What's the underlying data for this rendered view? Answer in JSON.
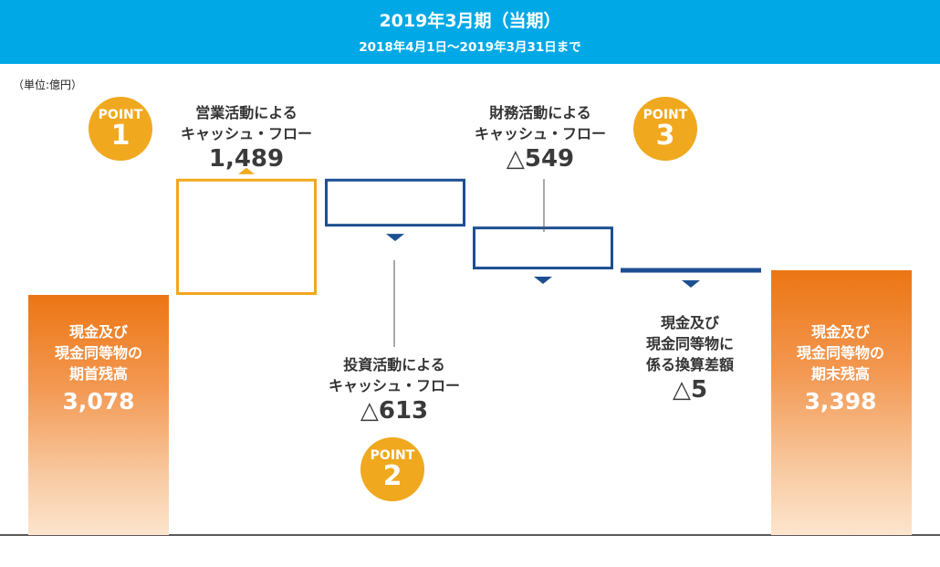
{
  "header": {
    "title": "2019年3月期（当期）",
    "period": "2018年4月1日～2019年3月31日まで"
  },
  "unit_label": "（単位:億円）",
  "colors": {
    "header_bg": "#00a9e6",
    "operating": "#f0a81e",
    "investing_financing": "#1d4f91",
    "cash_bar": "#ec7513",
    "point_badge": "#f0a81e"
  },
  "chart_data": {
    "type": "waterfall",
    "units": "億円",
    "steps": [
      {
        "key": "begin",
        "label_lines": [
          "現金及び",
          "現金同等物の",
          "期首残高"
        ],
        "value_text": "3,078",
        "value": 3078,
        "kind": "total"
      },
      {
        "key": "operating",
        "label_lines": [
          "営業活動による",
          "キャッシュ・フロー"
        ],
        "value_text": "1,489",
        "value": 1489,
        "kind": "increase",
        "point": "1"
      },
      {
        "key": "investing",
        "label_lines": [
          "投資活動による",
          "キャッシュ・フロー"
        ],
        "value_text": "△613",
        "value": -613,
        "kind": "decrease",
        "point": "2"
      },
      {
        "key": "financing",
        "label_lines": [
          "財務活動による",
          "キャッシュ・フロー"
        ],
        "value_text": "△549",
        "value": -549,
        "kind": "decrease",
        "point": "3"
      },
      {
        "key": "fx",
        "label_lines": [
          "現金及び",
          "現金同等物に",
          "係る換算差額"
        ],
        "value_text": "△5",
        "value": -5,
        "kind": "decrease"
      },
      {
        "key": "end",
        "label_lines": [
          "現金及び",
          "現金同等物の",
          "期末残高"
        ],
        "value_text": "3,398",
        "value": 3398,
        "kind": "total"
      }
    ]
  },
  "points": {
    "word": "POINT",
    "p1": "1",
    "p2": "2",
    "p3": "3"
  }
}
